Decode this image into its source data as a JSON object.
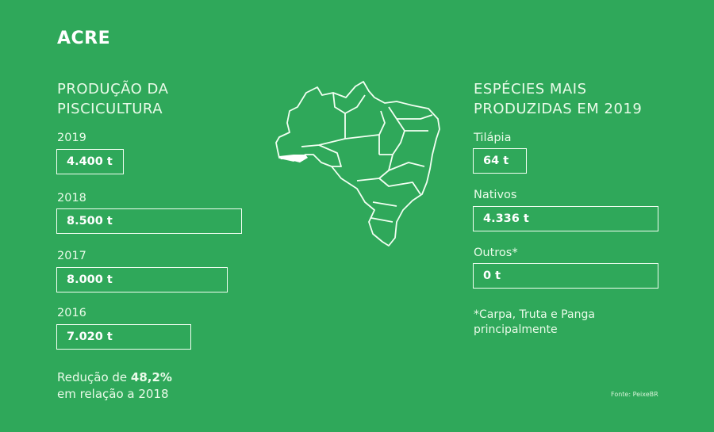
{
  "title": "ACRE",
  "left": {
    "heading_line1": "PRODUÇÃO DA",
    "heading_line2": "PISCICULTURA",
    "years": [
      {
        "year": "2019",
        "value": "4.400 t"
      },
      {
        "year": "2018",
        "value": "8.500 t"
      },
      {
        "year": "2017",
        "value": "8.000 t"
      },
      {
        "year": "2016",
        "value": "7.020 t"
      }
    ],
    "summary_prefix": "Redução de ",
    "summary_value": "48,2%",
    "summary_suffix": "em relação a 2018"
  },
  "map": {
    "highlighted_state": "Acre",
    "fill_color": "#ffffff"
  },
  "right": {
    "heading_line1": "ESPÉCIES MAIS",
    "heading_line2": "PRODUZIDAS EM 2019",
    "species": [
      {
        "name": "Tilápia",
        "value": "64 t"
      },
      {
        "name": "Nativos",
        "value": "4.336 t"
      },
      {
        "name": "Outros*",
        "value": "0 t"
      }
    ],
    "footnote_line1": "*Carpa, Truta e Panga",
    "footnote_line2": "principalmente"
  },
  "source": "Fonte: PeixeBR",
  "colors": {
    "background": "#2fa85a",
    "foreground": "#ffffff"
  }
}
